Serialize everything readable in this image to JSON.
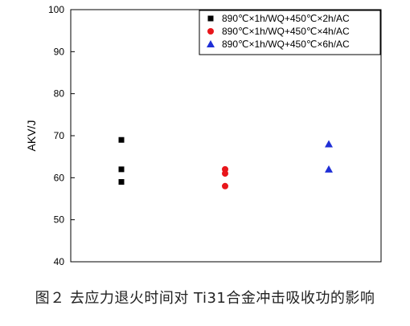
{
  "chart_data": {
    "type": "scatter",
    "xlabel": "",
    "ylabel": "AKV/J",
    "ylim": [
      40,
      100
    ],
    "yticks": [
      40,
      50,
      60,
      70,
      80,
      90,
      100
    ],
    "grid": false,
    "legend_position": "top-right",
    "series": [
      {
        "name": "890℃×1h/WQ+450℃×2h/AC",
        "marker": "square",
        "color": "#000000",
        "x": 1,
        "values": [
          69,
          62,
          59
        ]
      },
      {
        "name": "890℃×1h/WQ+450℃×4h/AC",
        "marker": "circle",
        "color": "#e8161b",
        "x": 2,
        "values": [
          62,
          61,
          58
        ]
      },
      {
        "name": "890℃×1h/WQ+450℃×6h/AC",
        "marker": "triangle",
        "color": "#1f2fd6",
        "x": 3,
        "values": [
          68,
          62
        ]
      }
    ]
  },
  "caption": "图２ 去应力退火时间对 Ti31合金冲击吸收功的影响"
}
